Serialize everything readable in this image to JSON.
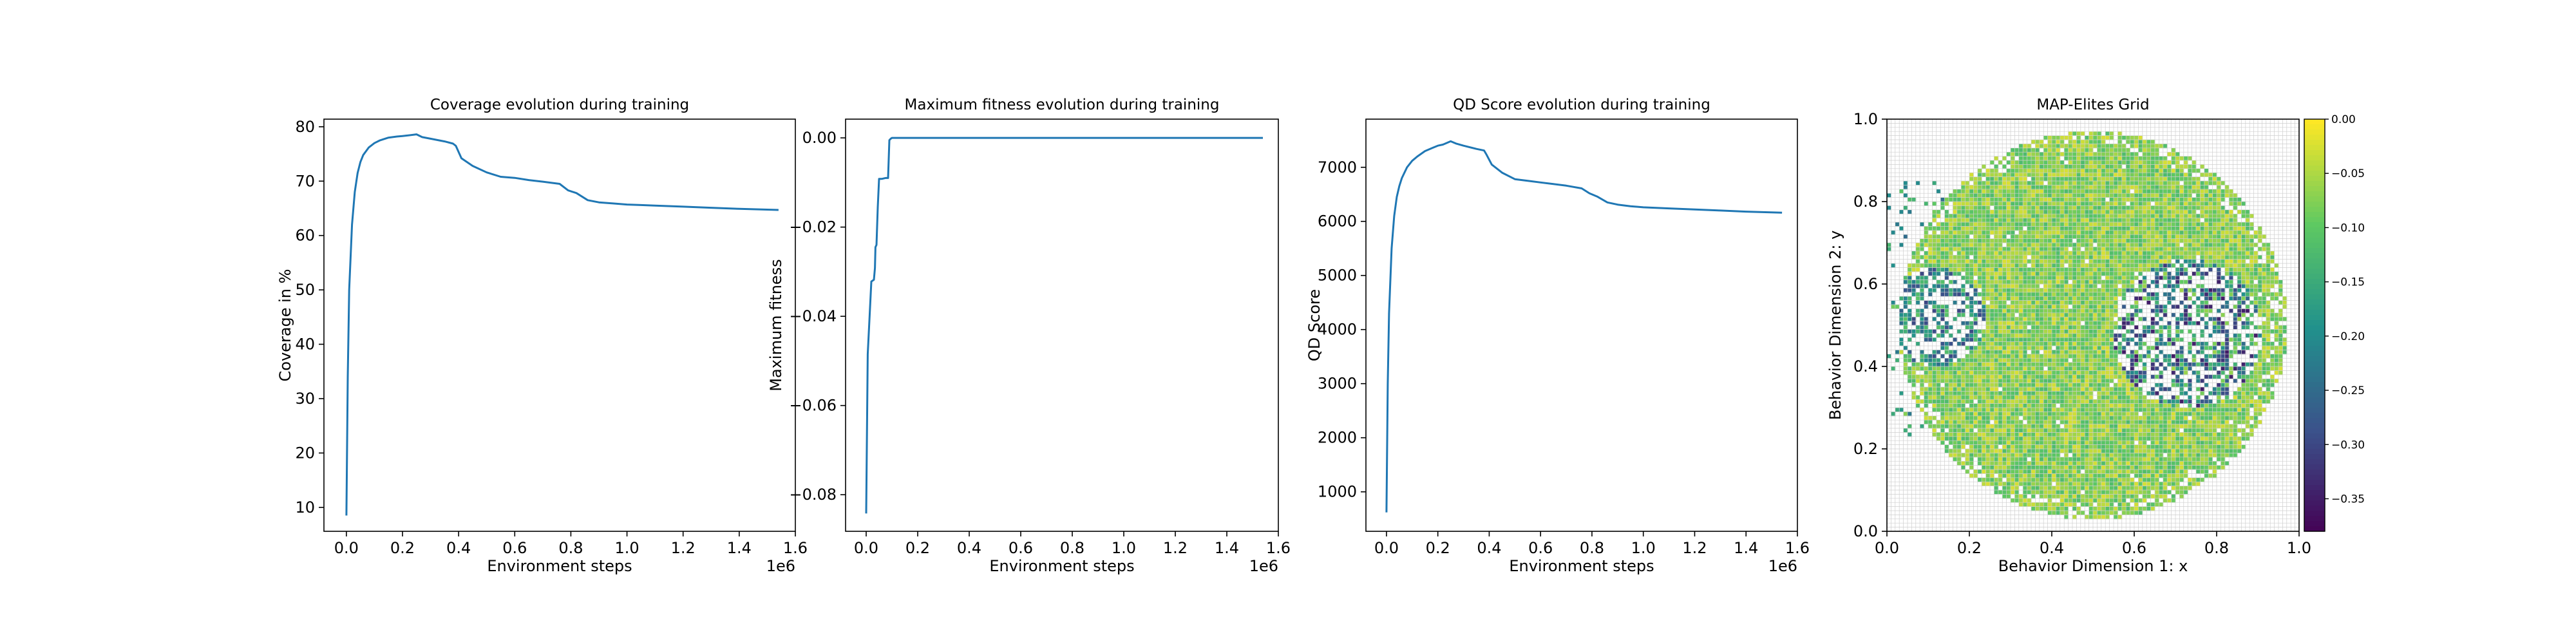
{
  "chart_data": [
    {
      "type": "line",
      "title": "Coverage evolution during training",
      "xlabel": "Environment steps",
      "ylabel": "Coverage in %",
      "x_offset_label": "1e6",
      "xlim": [
        -0.08,
        1.6
      ],
      "ylim": [
        5.6,
        81.4
      ],
      "xticks": [
        0.0,
        0.2,
        0.4,
        0.6,
        0.8,
        1.0,
        1.2,
        1.4,
        1.6
      ],
      "xtick_labels": [
        "0.0",
        "0.2",
        "0.4",
        "0.6",
        "0.8",
        "1.0",
        "1.2",
        "1.4",
        "1.6"
      ],
      "yticks": [
        10,
        20,
        30,
        40,
        50,
        60,
        70,
        80
      ],
      "ytick_labels": [
        "10",
        "20",
        "30",
        "40",
        "50",
        "60",
        "70",
        "80"
      ],
      "color": "#1f77b4",
      "grid": false,
      "series": [
        {
          "x": [
            0.0,
            0.005,
            0.01,
            0.02,
            0.03,
            0.04,
            0.05,
            0.06,
            0.08,
            0.1,
            0.12,
            0.15,
            0.18,
            0.2,
            0.22,
            0.25,
            0.27,
            0.3,
            0.35,
            0.38,
            0.39,
            0.41,
            0.45,
            0.5,
            0.55,
            0.6,
            0.65,
            0.7,
            0.76,
            0.79,
            0.82,
            0.86,
            0.9,
            0.95,
            1.0,
            1.05,
            1.1,
            1.2,
            1.3,
            1.4,
            1.54
          ],
          "y": [
            8.5,
            34,
            50,
            62,
            68,
            71.5,
            73.5,
            74.8,
            76.2,
            77,
            77.5,
            78,
            78.2,
            78.3,
            78.4,
            78.6,
            78.1,
            77.8,
            77.3,
            76.9,
            76.5,
            74.2,
            72.8,
            71.6,
            70.8,
            70.6,
            70.2,
            69.9,
            69.5,
            68.3,
            67.8,
            66.5,
            66.1,
            65.9,
            65.7,
            65.6,
            65.5,
            65.3,
            65.1,
            64.9,
            64.7
          ]
        }
      ]
    },
    {
      "type": "line",
      "title": "Maximum fitness evolution during training",
      "xlabel": "Environment steps",
      "ylabel": "Maximum fitness",
      "x_offset_label": "1e6",
      "xlim": [
        -0.08,
        1.6
      ],
      "ylim": [
        -0.0882,
        0.0042
      ],
      "xticks": [
        0.0,
        0.2,
        0.4,
        0.6,
        0.8,
        1.0,
        1.2,
        1.4,
        1.6
      ],
      "xtick_labels": [
        "0.0",
        "0.2",
        "0.4",
        "0.6",
        "0.8",
        "1.0",
        "1.2",
        "1.4",
        "1.6"
      ],
      "yticks": [
        -0.08,
        -0.06,
        -0.04,
        -0.02,
        0.0
      ],
      "ytick_labels": [
        "−0.08",
        "−0.06",
        "−0.04",
        "−0.02",
        "0.00"
      ],
      "color": "#1f77b4",
      "grid": false,
      "series": [
        {
          "x": [
            0.0,
            0.006,
            0.02,
            0.03,
            0.034,
            0.036,
            0.04,
            0.045,
            0.05,
            0.06,
            0.075,
            0.085,
            0.09,
            0.095,
            0.1,
            0.2,
            0.5,
            1.0,
            1.54
          ],
          "y": [
            -0.0842,
            -0.0485,
            -0.0322,
            -0.0318,
            -0.0292,
            -0.0245,
            -0.024,
            -0.0155,
            -0.0092,
            -0.0092,
            -0.009,
            -0.009,
            -0.0005,
            -0.0002,
            0.0,
            0.0,
            0.0,
            0.0,
            0.0
          ]
        }
      ]
    },
    {
      "type": "line",
      "title": "QD Score evolution during training",
      "xlabel": "Environment steps",
      "ylabel": "QD Score",
      "x_offset_label": "1e6",
      "xlim": [
        -0.08,
        1.6
      ],
      "ylim": [
        270,
        7890
      ],
      "xticks": [
        0.0,
        0.2,
        0.4,
        0.6,
        0.8,
        1.0,
        1.2,
        1.4,
        1.6
      ],
      "xtick_labels": [
        "0.0",
        "0.2",
        "0.4",
        "0.6",
        "0.8",
        "1.0",
        "1.2",
        "1.4",
        "1.6"
      ],
      "yticks": [
        1000,
        2000,
        3000,
        4000,
        5000,
        6000,
        7000
      ],
      "ytick_labels": [
        "1000",
        "2000",
        "3000",
        "4000",
        "5000",
        "6000",
        "7000"
      ],
      "color": "#1f77b4",
      "grid": false,
      "series": [
        {
          "x": [
            0.0,
            0.005,
            0.01,
            0.02,
            0.03,
            0.04,
            0.05,
            0.06,
            0.08,
            0.1,
            0.12,
            0.15,
            0.18,
            0.2,
            0.22,
            0.25,
            0.27,
            0.3,
            0.35,
            0.38,
            0.39,
            0.41,
            0.45,
            0.5,
            0.55,
            0.6,
            0.65,
            0.7,
            0.76,
            0.79,
            0.82,
            0.86,
            0.9,
            0.95,
            1.0,
            1.05,
            1.1,
            1.2,
            1.3,
            1.4,
            1.54
          ],
          "y": [
            620,
            3000,
            4300,
            5500,
            6100,
            6450,
            6650,
            6800,
            7000,
            7120,
            7200,
            7300,
            7360,
            7400,
            7420,
            7480,
            7440,
            7400,
            7340,
            7310,
            7230,
            7050,
            6900,
            6780,
            6750,
            6720,
            6690,
            6660,
            6610,
            6520,
            6460,
            6350,
            6310,
            6280,
            6260,
            6250,
            6240,
            6220,
            6200,
            6180,
            6160
          ]
        }
      ]
    },
    {
      "type": "heatmap",
      "title": "MAP-Elites Grid",
      "xlabel": "Behavior Dimension 1: x",
      "ylabel": "Behavior Dimension 2: y",
      "xlim": [
        0.0,
        1.0
      ],
      "ylim": [
        0.0,
        1.0
      ],
      "xticks": [
        0.0,
        0.2,
        0.4,
        0.6,
        0.8,
        1.0
      ],
      "xtick_labels": [
        "0.0",
        "0.2",
        "0.4",
        "0.6",
        "0.8",
        "1.0"
      ],
      "yticks": [
        0.0,
        0.2,
        0.4,
        0.6,
        0.8,
        1.0
      ],
      "ytick_labels": [
        "0.0",
        "0.2",
        "0.4",
        "0.6",
        "0.8",
        "1.0"
      ],
      "grid": true,
      "grid_cells": [
        100,
        100
      ],
      "colormap": "viridis",
      "colorbar": {
        "vmin": -0.38,
        "vmax": 0.0,
        "ticks": [
          0.0,
          -0.05,
          -0.1,
          -0.15,
          -0.2,
          -0.25,
          -0.3,
          -0.35
        ],
        "tick_labels": [
          "0.00",
          "−0.05",
          "−0.10",
          "−0.15",
          "−0.20",
          "−0.25",
          "−0.30",
          "−0.35"
        ]
      },
      "filled_region": {
        "shape": "disk",
        "center": [
          0.5,
          0.5
        ],
        "radius": 0.47
      },
      "typical_value_range": [
        -0.12,
        -0.02
      ],
      "sparse_regions": [
        {
          "center": [
            0.12,
            0.52
          ],
          "radius": 0.12,
          "value_range": [
            -0.3,
            -0.1
          ]
        },
        {
          "center": [
            0.73,
            0.48
          ],
          "radius": 0.18,
          "value_range": [
            -0.35,
            -0.05
          ]
        }
      ]
    }
  ]
}
